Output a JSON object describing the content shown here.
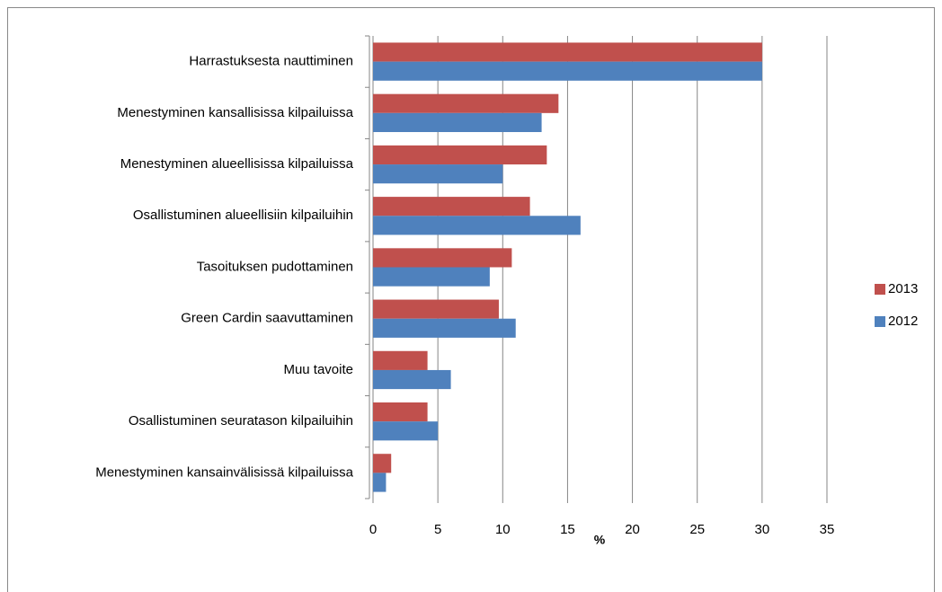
{
  "chart_data": {
    "type": "hbar",
    "categories": [
      "Harrastuksesta nauttiminen",
      "Menestyminen kansallisissa kilpailuissa",
      "Menestyminen alueellisissa kilpailuissa",
      "Osallistuminen alueellisiin kilpailuihin",
      "Tasoituksen pudottaminen",
      "Green Cardin saavuttaminen",
      "Muu tavoite",
      "Osallistuminen seuratason kilpailuihin",
      "Menestyminen kansainvälisissä kilpailuissa"
    ],
    "series": [
      {
        "name": "2013",
        "color": "#c0504d",
        "values": [
          30.0,
          14.3,
          13.4,
          12.1,
          10.7,
          9.7,
          4.2,
          4.2,
          1.4
        ]
      },
      {
        "name": "2012",
        "color": "#4f81bd",
        "values": [
          30.0,
          13.0,
          10.0,
          16.0,
          9.0,
          11.0,
          6.0,
          5.0,
          1.0
        ]
      }
    ],
    "xlabel": "%",
    "xlim": [
      0,
      35
    ],
    "xticks": [
      0,
      5,
      10,
      15,
      20,
      25,
      30,
      35
    ],
    "grid": true,
    "legend": "right"
  }
}
